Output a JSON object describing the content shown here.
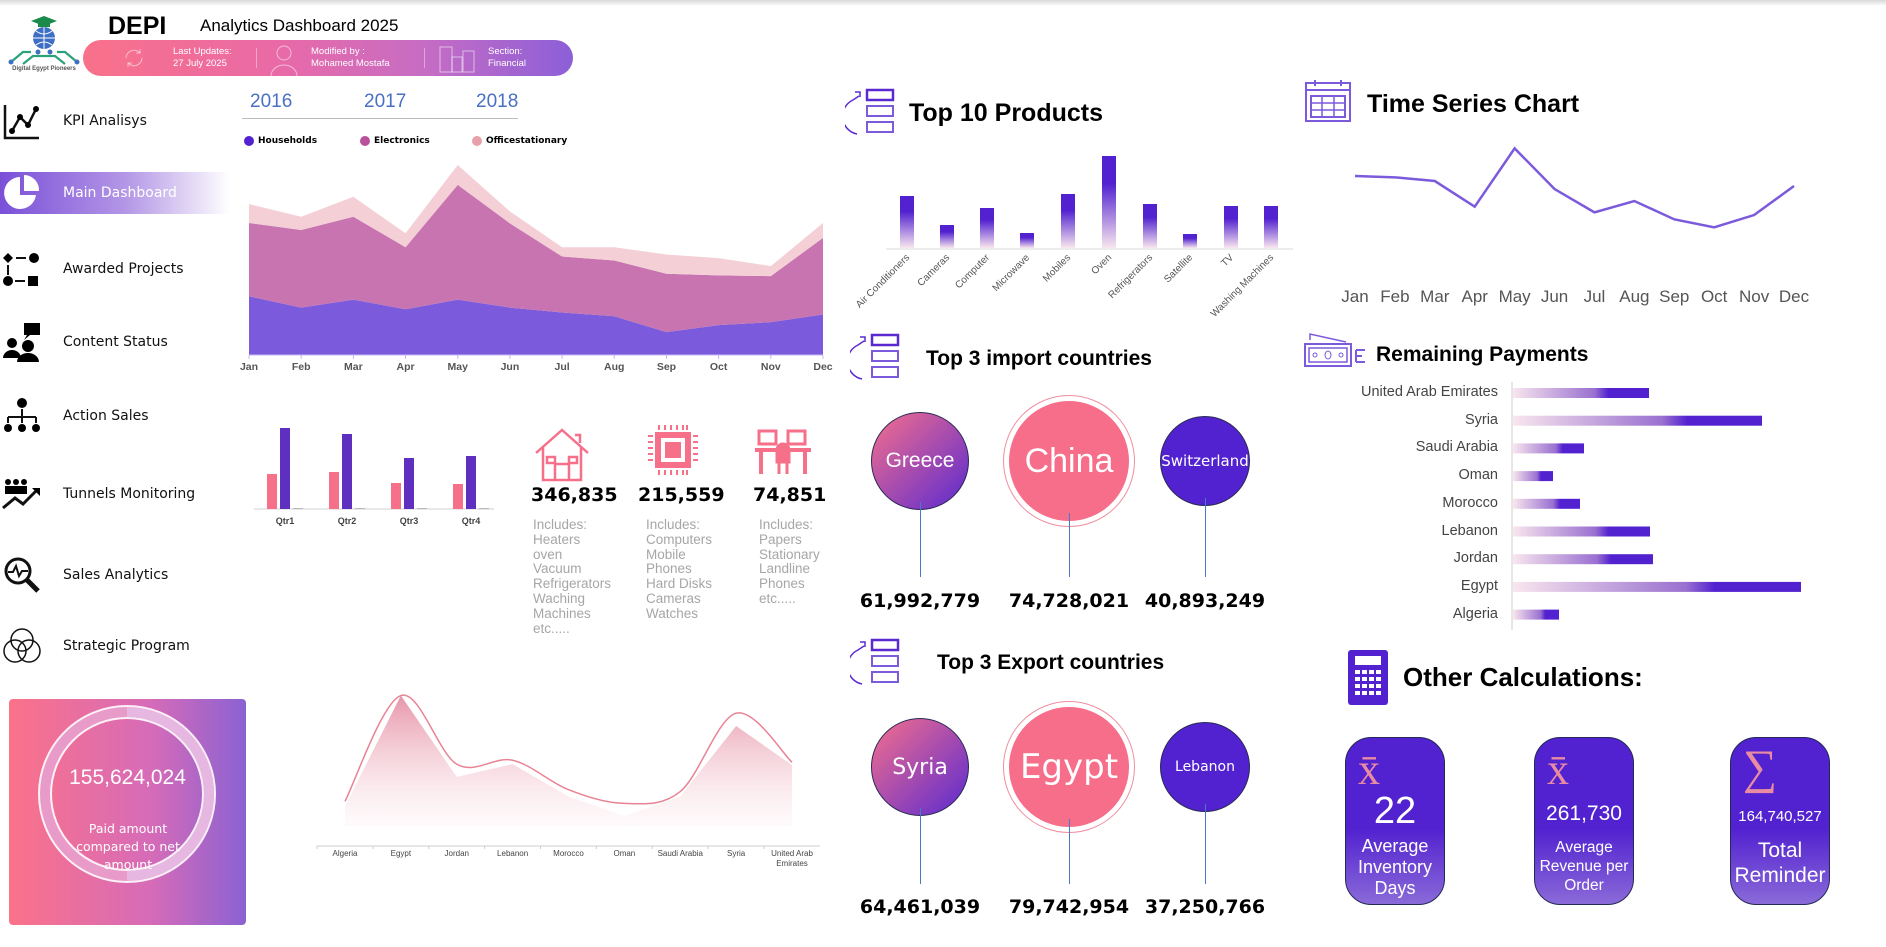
{
  "header": {
    "logo_text": "Digital Egypt Pioneers",
    "brand": "DEPI",
    "title": "Analytics Dashboard 2025",
    "last_updates_label": "Last Updates:",
    "last_updates_value": "27 July 2025",
    "modified_label": "Modified by :",
    "modified_value": "Mohamed Mostafa",
    "section_label": "Section:",
    "section_value": "Financial"
  },
  "sidebar": {
    "items": [
      {
        "label": "KPI Analisys",
        "icon": "line-chart-icon"
      },
      {
        "label": "Main Dashboard",
        "icon": "pie-chart-icon",
        "active": true
      },
      {
        "label": "Awarded Projects",
        "icon": "flow-icon"
      },
      {
        "label": "Content Status",
        "icon": "people-question-icon"
      },
      {
        "label": "Action Sales",
        "icon": "org-chart-icon"
      },
      {
        "label": "Tunnels Monitoring",
        "icon": "people-growth-icon"
      },
      {
        "label": "Sales Analytics",
        "icon": "magnifier-pulse-icon"
      },
      {
        "label": "Strategic Program",
        "icon": "venn-icon"
      }
    ]
  },
  "years": [
    "2016",
    "2017",
    "2018"
  ],
  "colors": {
    "pink": "#f7708a",
    "purple": "#5222d0",
    "magenta": "#c774b0",
    "light_pink": "#f4d0d6",
    "households": "#7c5adc"
  },
  "categories_summary": [
    {
      "icon": "house-icon",
      "value": "346,835",
      "includes": [
        "Includes:",
        "Heaters",
        "oven",
        "Vacuum",
        "Refrigerators",
        "Waching",
        "Machines",
        "etc....."
      ]
    },
    {
      "icon": "chip-icon",
      "value": "215,559",
      "includes": [
        "Includes:",
        "Computers",
        "Mobile",
        "Phones",
        "Hard Disks",
        "Cameras",
        "Watches"
      ]
    },
    {
      "icon": "desk-icon",
      "value": "74,851",
      "includes": [
        "Includes:",
        "Papers",
        "Stationary",
        "Landline",
        "Phones",
        "etc....."
      ]
    }
  ],
  "paid_card": {
    "value": "155,624,024",
    "caption": "Paid amount compared to net amount",
    "ring_fraction": 0.5
  },
  "top_products_title": "Top 10 Products",
  "time_series_title": "Time Series Chart",
  "remaining_title": "Remaining Payments",
  "imports": {
    "title": "Top 3 import countries",
    "countries": [
      {
        "name": "Greece",
        "value": "61,992,779"
      },
      {
        "name": "China",
        "value": "74,728,021"
      },
      {
        "name": "Switzerland",
        "value": "40,893,249"
      }
    ]
  },
  "exports": {
    "title": "Top 3 Export countries",
    "countries": [
      {
        "name": "Syria",
        "value": "64,461,039"
      },
      {
        "name": "Egypt",
        "value": "79,742,954"
      },
      {
        "name": "Lebanon",
        "value": "37,250,766"
      }
    ]
  },
  "other_calc": {
    "title": "Other Calculations:",
    "cards": [
      {
        "symbol": "x̄",
        "value": "22",
        "caption": "Average Inventory Days"
      },
      {
        "symbol": "x̄",
        "value": "261,730",
        "caption": "Average Revenue per Order"
      },
      {
        "symbol": "∑",
        "value": "164,740,527",
        "caption": "Total Reminder"
      }
    ]
  },
  "chart_data": [
    {
      "type": "area",
      "stacked": true,
      "categories": [
        "Jan",
        "Feb",
        "Mar",
        "Apr",
        "May",
        "Jun",
        "Jul",
        "Aug",
        "Sep",
        "Oct",
        "Nov",
        "Dec"
      ],
      "series": [
        {
          "name": "Households",
          "color": "#7c5adc",
          "values": [
            177,
            143,
            167,
            138,
            167,
            143,
            128,
            117,
            69,
            90,
            99,
            122
          ]
        },
        {
          "name": "Electronics",
          "color": "#c774b0",
          "values": [
            221,
            234,
            250,
            187,
            346,
            254,
            169,
            168,
            176,
            150,
            139,
            231
          ]
        },
        {
          "name": "Officestationary",
          "color": "#f4d0d6",
          "values": [
            57,
            40,
            60,
            42,
            60,
            36,
            28,
            40,
            58,
            52,
            30,
            45
          ]
        }
      ],
      "ylim": [
        0,
        600
      ],
      "legend": "top",
      "grid": false
    },
    {
      "type": "bar",
      "categories": [
        "Qtr1",
        "Qtr2",
        "Qtr3",
        "Qtr4"
      ],
      "series": [
        {
          "color": "#f7708a",
          "values": [
            35,
            37,
            26,
            25
          ]
        },
        {
          "color": "#5f2fbf",
          "values": [
            81,
            75,
            51,
            53
          ]
        },
        {
          "color": "#999999",
          "values": [
            0,
            0,
            0,
            0
          ]
        }
      ],
      "ylim": [
        0,
        100
      ],
      "grid": false
    },
    {
      "type": "area",
      "categories": [
        "Algeria",
        "Egypt",
        "Jordan",
        "Lebanon",
        "Morocco",
        "Oman",
        "Saudi Arabia",
        "Syria",
        "United Arab Emirates"
      ],
      "series": [
        {
          "style": "smooth-line",
          "color": "#e98294",
          "values": [
            20,
            128,
            58,
            62,
            32,
            18,
            30,
            110,
            60
          ]
        },
        {
          "style": "gradient-area",
          "color": "#e98ba2",
          "values": [
            15,
            128,
            45,
            58,
            25,
            5,
            25,
            97,
            57
          ]
        }
      ],
      "ylim": [
        0,
        140
      ],
      "grid": false
    },
    {
      "type": "bar",
      "title": "Top 10 Products",
      "categories": [
        "Air Conditioners",
        "Cameras",
        "Computer",
        "Microwave",
        "Mobiles",
        "Oven",
        "Refrigerators",
        "Satellite",
        "TV",
        "Washing Machines"
      ],
      "values": [
        52,
        23,
        40,
        15,
        54,
        92,
        44,
        14,
        42,
        42
      ],
      "ylim": [
        0,
        100
      ],
      "grid": false
    },
    {
      "type": "line",
      "title": "Time Series Chart",
      "categories": [
        "Jan",
        "Feb",
        "Mar",
        "Apr",
        "May",
        "Jun",
        "Jul",
        "Aug",
        "Sep",
        "Oct",
        "Nov",
        "Dec"
      ],
      "values": [
        282,
        278,
        267,
        190,
        365,
        243,
        173,
        207,
        152,
        128,
        165,
        252
      ],
      "ylim": [
        0,
        400
      ],
      "grid": false
    },
    {
      "type": "bar",
      "orientation": "horizontal",
      "title": "Remaining Payments",
      "categories": [
        "United Arab Emirates",
        "Syria",
        "Saudi Arabia",
        "Oman",
        "Morocco",
        "Lebanon",
        "Jordan",
        "Egypt",
        "Algeria"
      ],
      "values": [
        136,
        249,
        71,
        40,
        67,
        137,
        140,
        288,
        46
      ],
      "xlim": [
        0,
        300
      ],
      "grid": false
    }
  ]
}
